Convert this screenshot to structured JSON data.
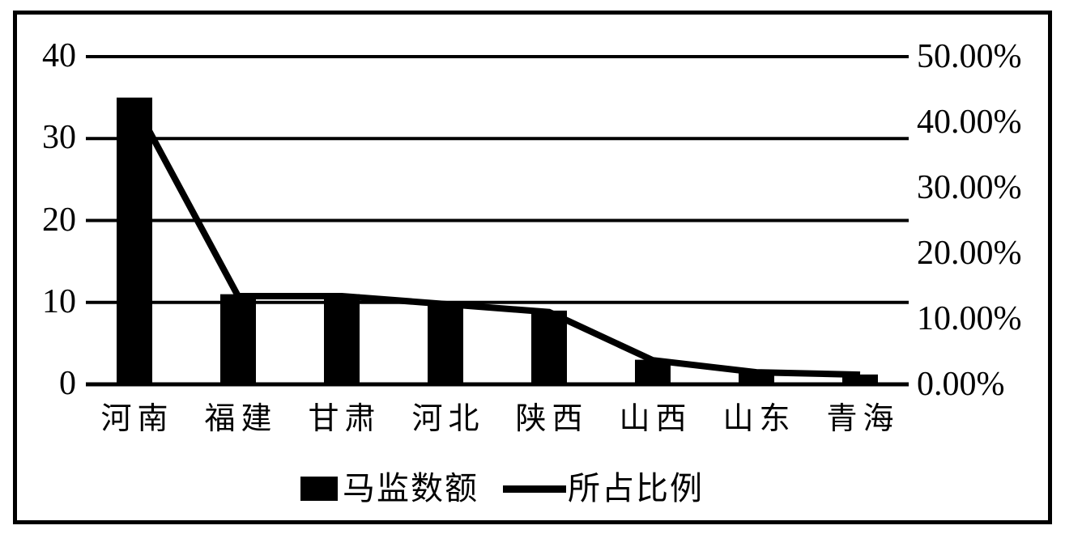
{
  "chart_data": {
    "type": "bar",
    "subtype": "bar-line-combo",
    "categories": [
      "河南",
      "福建",
      "甘肃",
      "河北",
      "陕西",
      "山西",
      "山东",
      "青海"
    ],
    "series": [
      {
        "name": "马监数额",
        "type": "bar",
        "axis": "left",
        "values": [
          35,
          11,
          11,
          10,
          9,
          3,
          1.5,
          1.2
        ]
      },
      {
        "name": "所占比例",
        "type": "line",
        "axis": "right",
        "values_percent": [
          42.84,
          13.46,
          13.46,
          12.24,
          11.02,
          3.67,
          1.84,
          1.47
        ]
      }
    ],
    "left_axis": {
      "ticks": [
        "40",
        "30",
        "20",
        "10",
        "0"
      ],
      "min": 0,
      "max": 40
    },
    "right_axis": {
      "ticks": [
        "50.00%",
        "40.00%",
        "30.00%",
        "20.00%",
        "10.00%",
        "0.00%"
      ],
      "min": 0,
      "max": 50
    },
    "legend": {
      "position": "bottom-center",
      "bar_label": "马监数额",
      "line_label": "所占比例"
    },
    "title": "",
    "grid": "horizontal",
    "colors": {
      "bar": "#000000",
      "line": "#000000",
      "grid": "#000000",
      "frame": "#000000",
      "background": "#ffffff"
    }
  }
}
